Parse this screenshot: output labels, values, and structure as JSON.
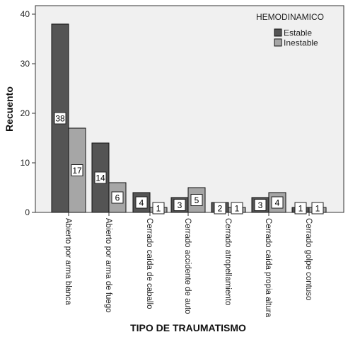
{
  "chart_data": {
    "type": "bar",
    "xlabel": "TIPO DE TRAUMATISMO",
    "ylabel": "Recuento",
    "ylim": [
      0,
      40
    ],
    "yticks": [
      0,
      10,
      20,
      30,
      40
    ],
    "grid": false,
    "legend_title": "HEMODINAMICO",
    "legend_position": "top-right",
    "categories": [
      "Abierto por arma blanca",
      "Abierto por arma de fuego",
      "Cerrado caída de caballo",
      "Cerrado accidente de auto",
      "Cerrado atropellamiento",
      "Cerrado caída propia altura",
      "Cerrado golpe contuso"
    ],
    "series": [
      {
        "name": "Estable",
        "color": "#545454",
        "values": [
          38,
          14,
          4,
          3,
          2,
          3,
          1
        ]
      },
      {
        "name": "Inestable",
        "color": "#a6a6a6",
        "values": [
          17,
          6,
          1,
          5,
          1,
          4,
          1
        ]
      }
    ],
    "plot_background": "#f0f0f0"
  }
}
